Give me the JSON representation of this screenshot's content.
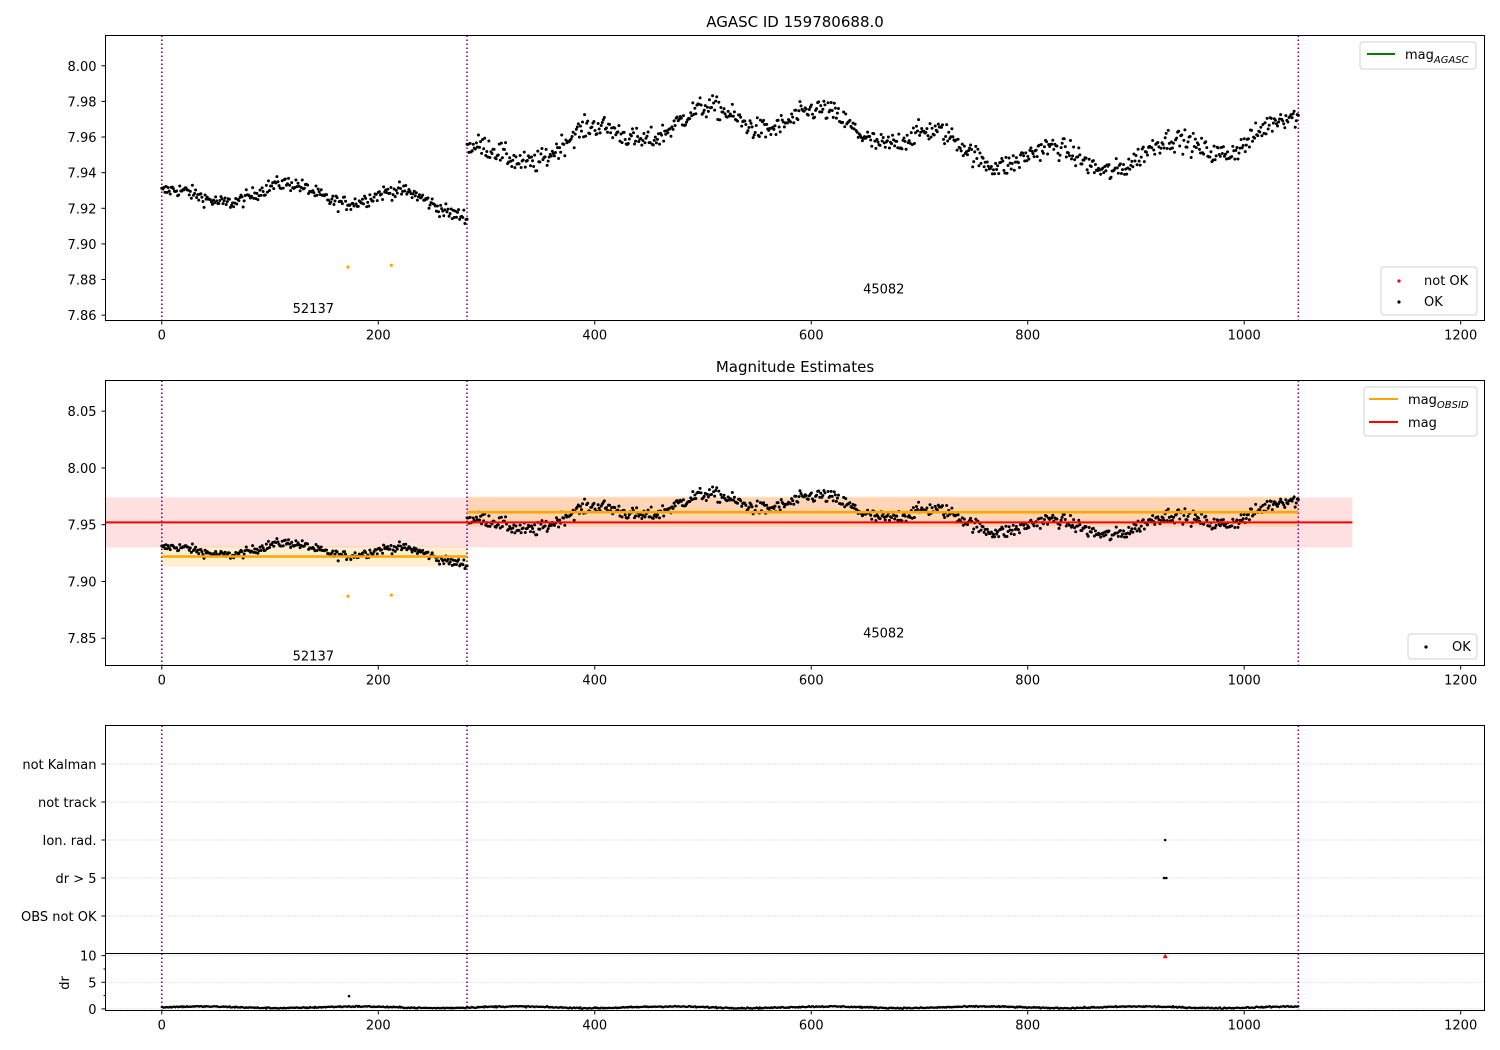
{
  "chart_data": [
    {
      "type": "scatter",
      "title": "AGASC ID 159780688.0",
      "xlim": [
        -52,
        1222
      ],
      "ylim": [
        7.857,
        8.017
      ],
      "x_ticks": [
        0,
        200,
        400,
        600,
        800,
        1000,
        1200
      ],
      "y_ticks": [
        7.86,
        7.88,
        7.9,
        7.92,
        7.94,
        7.96,
        7.98,
        8.0
      ],
      "y_tick_labels": [
        "7.86",
        "7.88",
        "7.90",
        "7.92",
        "7.94",
        "7.96",
        "7.98",
        "8.00"
      ],
      "vlines": [
        0,
        282,
        1050
      ],
      "obsid_labels": [
        {
          "text": "52137",
          "x": 140,
          "y": 7.864
        },
        {
          "text": "45082",
          "x": 667,
          "y": 7.875
        }
      ],
      "legend_upper": {
        "position": "upper right",
        "entries": [
          {
            "label": "mag",
            "subscript": "AGASC",
            "color": "#008000"
          }
        ]
      },
      "legend_lower": {
        "position": "lower right",
        "entries": [
          {
            "label": "not OK",
            "color": "#ff0000"
          },
          {
            "label": "OK",
            "color": "#000000"
          }
        ]
      },
      "series": [
        {
          "name": "OK",
          "color": "#000000",
          "segments": [
            {
              "x_start": 0,
              "x_end": 282,
              "count": 290,
              "mean": 7.922,
              "slow_amp": 0.007,
              "fast_amp": 0.005,
              "noise": 0.004
            },
            {
              "x_start": 282,
              "x_end": 1050,
              "count": 800,
              "mean": 7.959,
              "slow_amp": 0.012,
              "fast_amp": 0.007,
              "noise": 0.006
            }
          ]
        },
        {
          "name": "orange outliers",
          "color": "#ffa500",
          "points": [
            [
              172,
              7.887
            ],
            [
              212,
              7.888
            ]
          ]
        }
      ]
    },
    {
      "type": "scatter",
      "title": "Magnitude Estimates",
      "xlim": [
        -52,
        1222
      ],
      "ylim": [
        7.826,
        8.077
      ],
      "x_ticks": [
        0,
        200,
        400,
        600,
        800,
        1000,
        1200
      ],
      "y_ticks": [
        7.85,
        7.9,
        7.95,
        8.0,
        8.05
      ],
      "y_tick_labels": [
        "7.85",
        "7.90",
        "7.95",
        "8.00",
        "8.05"
      ],
      "vlines": [
        0,
        282,
        1050
      ],
      "obsid_labels": [
        {
          "text": "52137",
          "x": 140,
          "y": 7.835
        },
        {
          "text": "45082",
          "x": 667,
          "y": 7.855
        }
      ],
      "mag": {
        "value": 7.952,
        "band": [
          7.93,
          7.974
        ],
        "x_start": -52,
        "x_end": 1100,
        "color": "#ff0000"
      },
      "mag_obsid": [
        {
          "x_start": 0,
          "x_end": 282,
          "value": 7.922,
          "band": [
            7.913,
            7.931
          ]
        },
        {
          "x_start": 282,
          "x_end": 1050,
          "value": 7.961,
          "band": [
            7.948,
            7.975
          ]
        }
      ],
      "legend_upper": {
        "position": "upper right",
        "entries": [
          {
            "label": "mag",
            "subscript": "OBSID",
            "color": "#ffa500"
          },
          {
            "label": "mag",
            "subscript": "",
            "color": "#ff0000"
          }
        ]
      },
      "legend_lower": {
        "position": "lower right",
        "entries": [
          {
            "label": "OK",
            "color": "#000000"
          }
        ]
      }
    },
    {
      "type": "scatter",
      "title": "",
      "xlim": [
        -52,
        1222
      ],
      "categories": [
        "not Kalman",
        "not track",
        "Ion. rad.",
        "dr > 5",
        "OBS not OK"
      ],
      "vlines": [
        0,
        282,
        1050
      ],
      "flag_points": [
        {
          "category": "Ion. rad.",
          "x": 927
        },
        {
          "category": "dr > 5",
          "x": 926
        },
        {
          "category": "dr > 5",
          "x": 928
        }
      ]
    },
    {
      "type": "scatter",
      "title": "",
      "ylabel": "dr",
      "xlim": [
        -52,
        1222
      ],
      "ylim": [
        -0.3,
        10.4
      ],
      "x_ticks": [
        0,
        200,
        400,
        600,
        800,
        1000,
        1200
      ],
      "y_ticks": [
        0,
        5,
        10
      ],
      "y_tick_labels": [
        "0",
        "5",
        "10"
      ],
      "vlines": [
        0,
        282,
        1050
      ],
      "dr_series": {
        "x_start": 0,
        "x_end": 1050,
        "count": 1090,
        "base": 0.3,
        "amp": 0.25
      },
      "outliers": [
        {
          "x": 173,
          "y": 2.4
        }
      ],
      "clipped_marker": {
        "x": 927,
        "y": 9.9,
        "color": "#ff0000"
      }
    }
  ]
}
